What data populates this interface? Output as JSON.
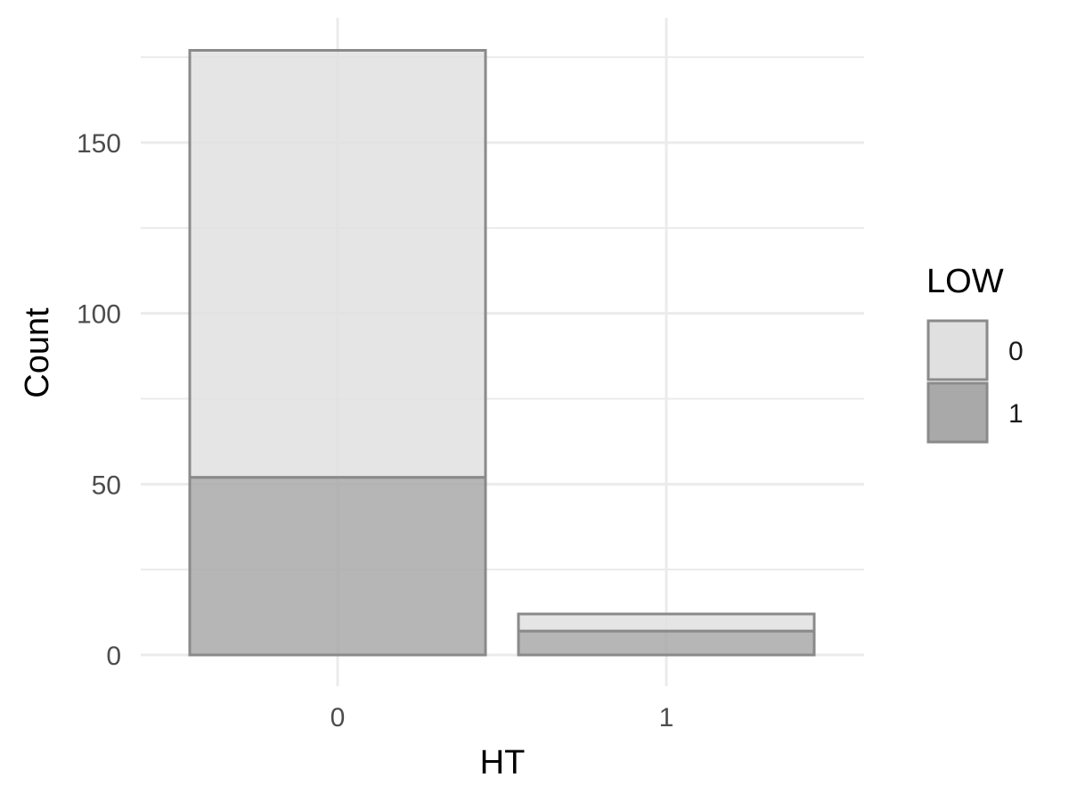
{
  "chart_data": {
    "type": "bar",
    "stacked": true,
    "categories": [
      "0",
      "1"
    ],
    "series": [
      {
        "name": "0",
        "values": [
          125,
          5
        ],
        "color": "#e0e0e0"
      },
      {
        "name": "1",
        "values": [
          52,
          7
        ],
        "color": "#a9a9a9"
      }
    ],
    "xlabel": "HT",
    "ylabel": "Count",
    "ylim": [
      0,
      177
    ],
    "yticks": [
      0,
      50,
      100,
      150
    ],
    "legend_title": "LOW",
    "legend_position": "right",
    "grid": true,
    "bar_outline_color": "#8a8a8a",
    "grid_color": "#ebebeb"
  }
}
